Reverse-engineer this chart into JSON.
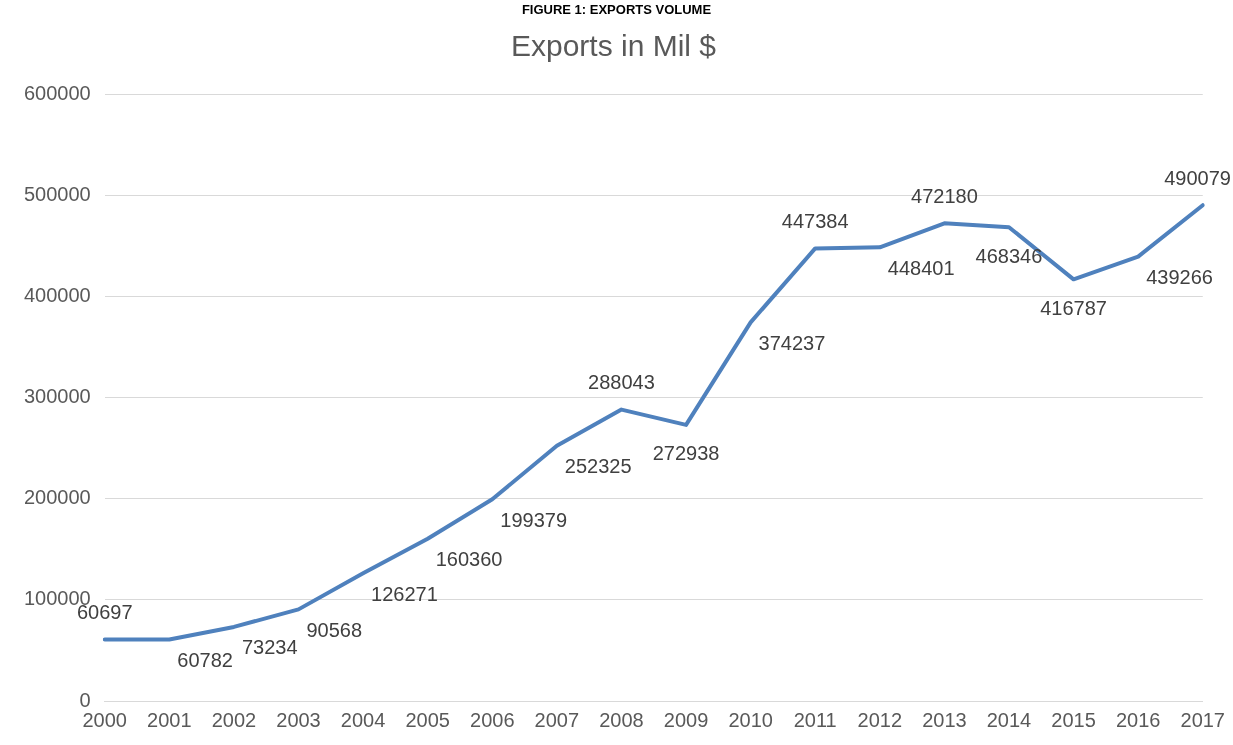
{
  "chart_data": {
    "type": "line",
    "title": "Exports in Mil $",
    "annotations": [
      "FIGURE 1: EXPORTS VOLUME"
    ],
    "categories": [
      "2000",
      "2001",
      "2002",
      "2003",
      "2004",
      "2005",
      "2006",
      "2007",
      "2008",
      "2009",
      "2010",
      "2011",
      "2012",
      "2013",
      "2014",
      "2015",
      "2016",
      "2017"
    ],
    "series": [
      {
        "color": "#4f81bd",
        "values": [
          60697,
          60782,
          73234,
          90568,
          126271,
          160360,
          199379,
          252325,
          288043,
          272938,
          374237,
          447384,
          448401,
          472180,
          468346,
          416787,
          439266,
          490079
        ]
      }
    ],
    "ylim": [
      0,
      600000
    ],
    "yticks": [
      0,
      100000,
      200000,
      300000,
      400000,
      500000,
      600000
    ],
    "grid": "y",
    "legend": false,
    "data_labels": true,
    "marker": "none",
    "line_style": "solid"
  }
}
